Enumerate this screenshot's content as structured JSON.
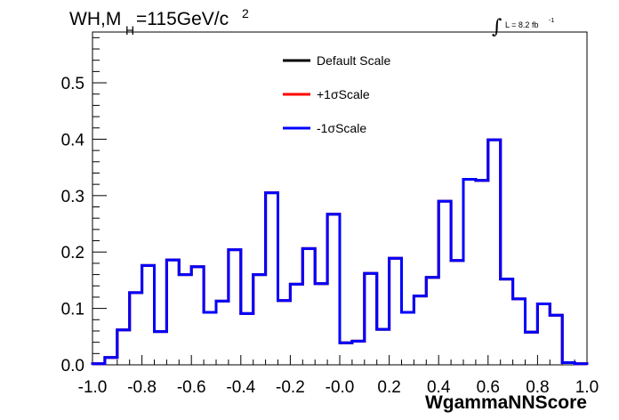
{
  "title": {
    "prefix": "WH,M",
    "subscript": "H",
    "suffix": "=115GeV/c",
    "superscript": "2"
  },
  "luminosity": {
    "integral_symbol": "∫",
    "text": "L = 8.2 fb",
    "superscript": "-1"
  },
  "chart_data": {
    "type": "line",
    "style": "step-histogram",
    "xlabel": "WgammaNNScore",
    "ylabel": "",
    "xlim": [
      -1.0,
      1.0
    ],
    "ylim": [
      0,
      0.59
    ],
    "grid": false,
    "legend_placement": "top-center",
    "x_ticks": [
      "-1.0",
      "-0.8",
      "-0.6",
      "-0.4",
      "-0.2",
      "-0.0",
      "0.2",
      "0.4",
      "0.6",
      "0.8",
      "1.0"
    ],
    "y_ticks": [
      "0.0",
      "0.1",
      "0.2",
      "0.3",
      "0.4",
      "0.5"
    ],
    "bin_edges": [
      -1.0,
      -0.95,
      -0.9,
      -0.85,
      -0.8,
      -0.75,
      -0.7,
      -0.65,
      -0.6,
      -0.55,
      -0.5,
      -0.45,
      -0.4,
      -0.35,
      -0.3,
      -0.25,
      -0.2,
      -0.15,
      -0.1,
      -0.05,
      0.0,
      0.05,
      0.1,
      0.15,
      0.2,
      0.25,
      0.3,
      0.35,
      0.4,
      0.45,
      0.5,
      0.55,
      0.6,
      0.65,
      0.7,
      0.75,
      0.8,
      0.85,
      0.9,
      0.95,
      1.0
    ],
    "series": [
      {
        "name": "Default Scale",
        "color": "#000000",
        "values": [
          0.002,
          0.013,
          0.062,
          0.128,
          0.176,
          0.059,
          0.186,
          0.16,
          0.174,
          0.093,
          0.113,
          0.204,
          0.091,
          0.16,
          0.305,
          0.114,
          0.143,
          0.206,
          0.144,
          0.267,
          0.039,
          0.042,
          0.162,
          0.063,
          0.189,
          0.093,
          0.122,
          0.155,
          0.29,
          0.185,
          0.329,
          0.327,
          0.399,
          0.152,
          0.117,
          0.058,
          0.108,
          0.088,
          0.004,
          0.002
        ]
      },
      {
        "name": "+1σScale",
        "color": "#ff0000",
        "values": [
          0.002,
          0.013,
          0.062,
          0.128,
          0.176,
          0.059,
          0.186,
          0.16,
          0.174,
          0.093,
          0.113,
          0.204,
          0.091,
          0.16,
          0.305,
          0.114,
          0.143,
          0.206,
          0.144,
          0.267,
          0.039,
          0.042,
          0.162,
          0.063,
          0.189,
          0.093,
          0.122,
          0.155,
          0.29,
          0.185,
          0.329,
          0.327,
          0.399,
          0.152,
          0.117,
          0.058,
          0.108,
          0.088,
          0.004,
          0.002
        ]
      },
      {
        "name": "-1σScale",
        "color": "#0000ff",
        "values": [
          0.002,
          0.013,
          0.062,
          0.128,
          0.176,
          0.059,
          0.186,
          0.16,
          0.174,
          0.093,
          0.113,
          0.204,
          0.091,
          0.16,
          0.305,
          0.114,
          0.143,
          0.206,
          0.144,
          0.267,
          0.039,
          0.042,
          0.162,
          0.063,
          0.189,
          0.093,
          0.122,
          0.155,
          0.29,
          0.185,
          0.329,
          0.327,
          0.399,
          0.152,
          0.117,
          0.058,
          0.108,
          0.088,
          0.004,
          0.002
        ]
      }
    ]
  }
}
